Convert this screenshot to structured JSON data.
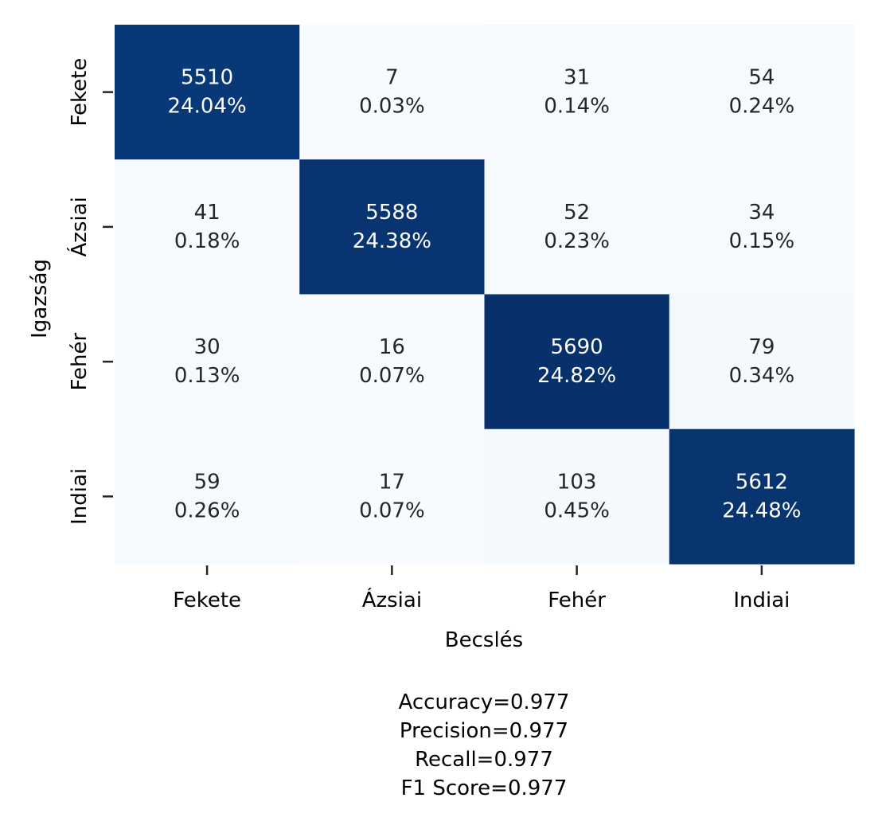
{
  "chart_data": {
    "type": "heatmap",
    "title": "",
    "xlabel": "Becslés",
    "ylabel": "Igazság",
    "x_categories": [
      "Fekete",
      "Ázsiai",
      "Fehér",
      "Indiai"
    ],
    "y_categories": [
      "Fekete",
      "Ázsiai",
      "Fehér",
      "Indiai"
    ],
    "values": [
      [
        5510,
        7,
        31,
        54
      ],
      [
        41,
        5588,
        52,
        34
      ],
      [
        30,
        16,
        5690,
        79
      ],
      [
        59,
        17,
        103,
        5612
      ]
    ],
    "percent_labels": [
      [
        "24.04%",
        "0.03%",
        "0.14%",
        "0.24%"
      ],
      [
        "0.18%",
        "24.38%",
        "0.23%",
        "0.15%"
      ],
      [
        "0.13%",
        "0.07%",
        "24.82%",
        "0.34%"
      ],
      [
        "0.26%",
        "0.07%",
        "0.45%",
        "24.48%"
      ]
    ],
    "colormap": "Blues",
    "colorbar": false,
    "grid": false,
    "colors": {
      "low": "#f7fbff",
      "high": "#08306b",
      "text_dark": "#262626",
      "text_light": "#ffffff"
    },
    "stats_lines": [
      "Accuracy=0.977",
      "Precision=0.977",
      "Recall=0.977",
      "F1 Score=0.977"
    ]
  }
}
